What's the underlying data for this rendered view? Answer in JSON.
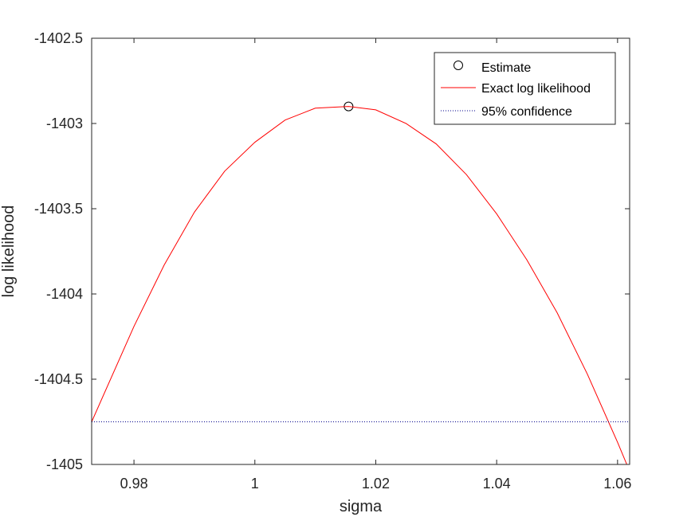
{
  "chart_data": {
    "type": "line",
    "xlabel": "sigma",
    "ylabel": "log likelihood",
    "xlim": [
      0.973,
      1.062
    ],
    "ylim": [
      -1405,
      -1402.5
    ],
    "xticks": [
      0.98,
      1.0,
      1.02,
      1.04,
      1.06
    ],
    "xtick_labels": [
      "0.98",
      "1",
      "1.02",
      "1.04",
      "1.06"
    ],
    "yticks": [
      -1405,
      -1404.5,
      -1404,
      -1403.5,
      -1403,
      -1402.5
    ],
    "ytick_labels": [
      "-1405",
      "-1404.5",
      "-1404",
      "-1403.5",
      "-1403",
      "-1402.5"
    ],
    "grid": false,
    "legend_position": "top-right",
    "series": [
      {
        "name": "Estimate",
        "kind": "marker",
        "marker": "circle",
        "color": "#000000",
        "x": [
          1.0155
        ],
        "y": [
          -1402.9
        ]
      },
      {
        "name": "Exact log likelihood",
        "kind": "line",
        "style": "solid",
        "color": "#ff0000",
        "x": [
          0.973,
          0.98,
          0.985,
          0.99,
          0.995,
          1.0,
          1.005,
          1.01,
          1.0155,
          1.02,
          1.025,
          1.03,
          1.035,
          1.04,
          1.045,
          1.05,
          1.055,
          1.06,
          1.062
        ],
        "y": [
          -1404.75,
          -1404.19,
          -1403.83,
          -1403.52,
          -1403.28,
          -1403.11,
          -1402.98,
          -1402.91,
          -1402.9,
          -1402.92,
          -1403.0,
          -1403.12,
          -1403.3,
          -1403.53,
          -1403.8,
          -1404.11,
          -1404.47,
          -1404.87,
          -1405.04
        ]
      },
      {
        "name": "95% confidence",
        "kind": "line",
        "style": "dotted",
        "color": "#00008b",
        "x": [
          0.973,
          1.062
        ],
        "y": [
          -1404.75,
          -1404.75
        ]
      }
    ]
  }
}
